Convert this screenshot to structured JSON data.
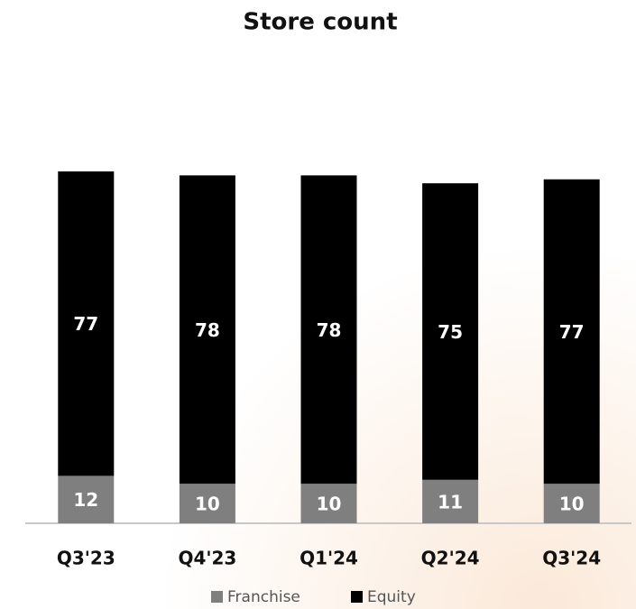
{
  "chart_data": {
    "type": "stacked_bar",
    "title": "Store count",
    "categories": [
      "Q3'23",
      "Q4'23",
      "Q1'24",
      "Q2'24",
      "Q3'24"
    ],
    "series": [
      {
        "name": "Franchise",
        "color": "#7f7f7f",
        "values": [
          12,
          10,
          10,
          11,
          10
        ]
      },
      {
        "name": "Equity",
        "color": "#000000",
        "values": [
          77,
          78,
          78,
          75,
          77
        ]
      }
    ]
  }
}
